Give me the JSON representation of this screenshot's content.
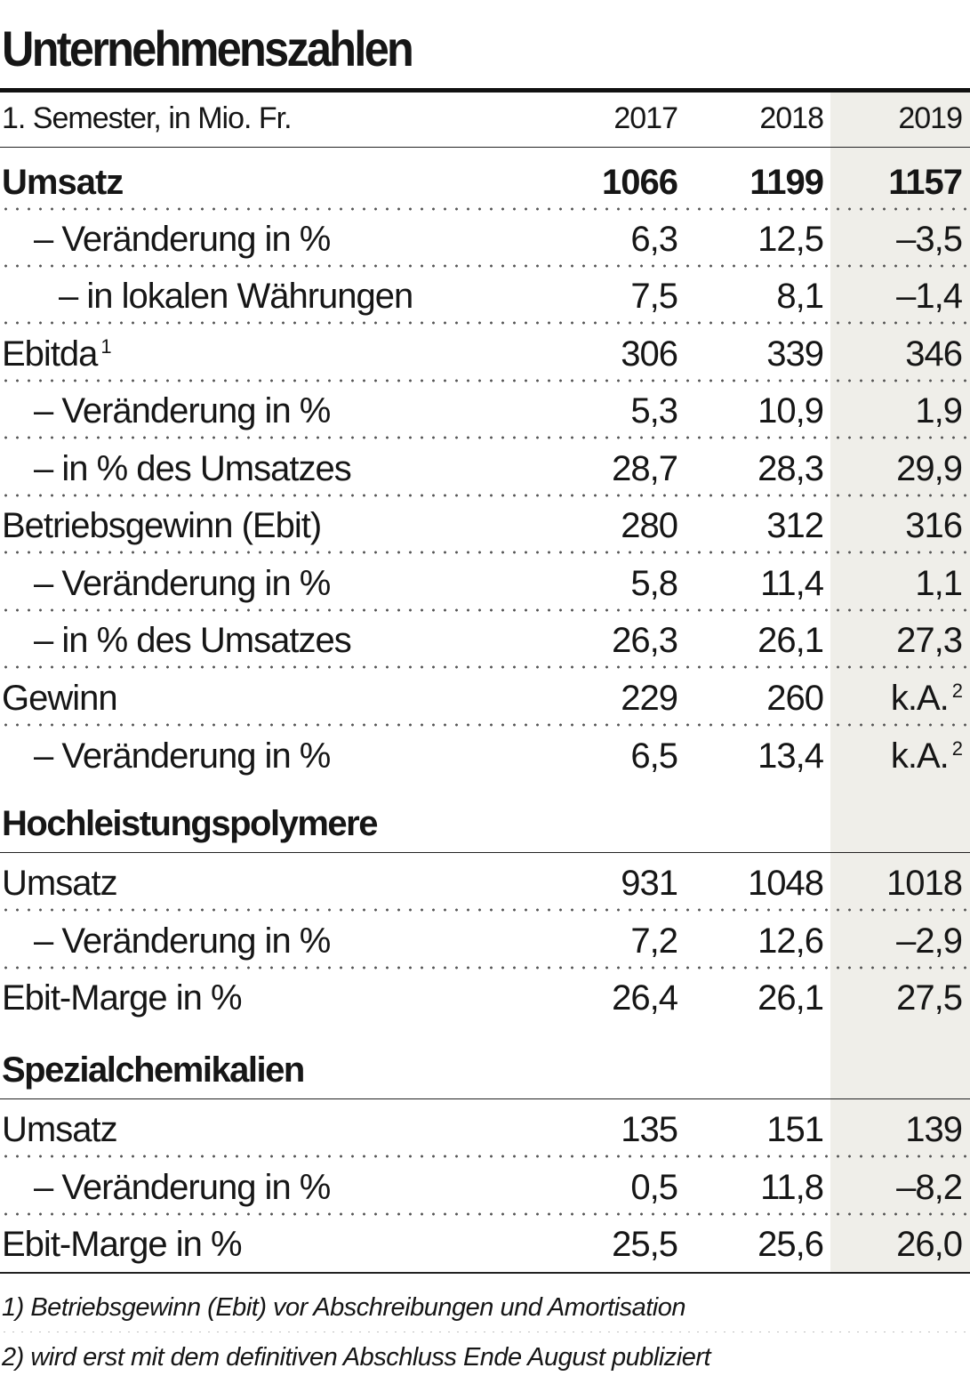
{
  "title": "Unternehmenszahlen",
  "header": {
    "label": "1. Semester, in Mio. Fr.",
    "years": [
      "2017",
      "2018",
      "2019"
    ]
  },
  "rows": {
    "umsatz": {
      "label": "Umsatz",
      "values": [
        "1066",
        "1199",
        "1157"
      ]
    },
    "umsatz_chg": {
      "label": "– Veränderung in %",
      "values": [
        "6,3",
        "12,5",
        "–3,5"
      ]
    },
    "umsatz_local": {
      "label": "– in lokalen Währungen",
      "values": [
        "7,5",
        "8,1",
        "–1,4"
      ]
    },
    "ebitda": {
      "label": "Ebitda",
      "footnote_ref": "1",
      "values": [
        "306",
        "339",
        "346"
      ]
    },
    "ebitda_chg": {
      "label": "– Veränderung in %",
      "values": [
        "5,3",
        "10,9",
        "1,9"
      ]
    },
    "ebitda_pct": {
      "label": "– in % des Umsatzes",
      "values": [
        "28,7",
        "28,3",
        "29,9"
      ]
    },
    "ebit": {
      "label": "Betriebsgewinn (Ebit)",
      "values": [
        "280",
        "312",
        "316"
      ]
    },
    "ebit_chg": {
      "label": "– Veränderung in %",
      "values": [
        "5,8",
        "11,4",
        "1,1"
      ]
    },
    "ebit_pct": {
      "label": "– in % des Umsatzes",
      "values": [
        "26,3",
        "26,1",
        "27,3"
      ]
    },
    "gewinn": {
      "label": "Gewinn",
      "values": [
        "229",
        "260",
        "k.A."
      ],
      "footnote_ref": "2"
    },
    "gewinn_chg": {
      "label": "– Veränderung in %",
      "values": [
        "6,5",
        "13,4",
        "k.A."
      ],
      "footnote_ref": "2"
    }
  },
  "sections": {
    "hochleistung": {
      "title": "Hochleistungspolymere",
      "umsatz": {
        "label": "Umsatz",
        "values": [
          "931",
          "1048",
          "1018"
        ]
      },
      "chg": {
        "label": "– Veränderung in %",
        "values": [
          "7,2",
          "12,6",
          "–2,9"
        ]
      },
      "marge": {
        "label": "Ebit-Marge in %",
        "values": [
          "26,4",
          "26,1",
          "27,5"
        ]
      }
    },
    "spezial": {
      "title": "Spezialchemikalien",
      "umsatz": {
        "label": "Umsatz",
        "values": [
          "135",
          "151",
          "139"
        ]
      },
      "chg": {
        "label": "– Veränderung in %",
        "values": [
          "0,5",
          "11,8",
          "–8,2"
        ]
      },
      "marge": {
        "label": "Ebit-Marge in %",
        "values": [
          "25,5",
          "25,6",
          "26,0"
        ]
      }
    }
  },
  "footnotes": [
    "1) Betriebsgewinn (Ebit) vor Abschreibungen und Amortisation",
    "2) wird erst mit dem definitiven Abschluss Ende August publiziert"
  ]
}
